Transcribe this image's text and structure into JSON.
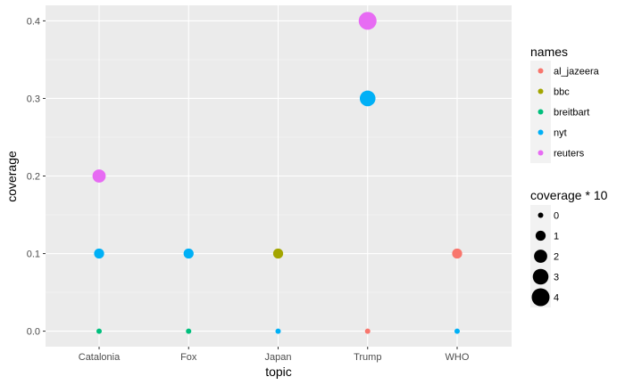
{
  "chart_data": {
    "type": "scatter",
    "xlabel": "topic",
    "ylabel": "coverage",
    "categories": [
      "Catalonia",
      "Fox",
      "Japan",
      "Trump",
      "WHO"
    ],
    "ylim": [
      -0.02,
      0.42
    ],
    "yticks": [
      0.0,
      0.1,
      0.2,
      0.3,
      0.4
    ],
    "ytick_labels": [
      "0.0",
      "0.1",
      "0.2",
      "0.3",
      "0.4"
    ],
    "grid": true,
    "legend_position": "right",
    "color_legend": {
      "title": "names",
      "entries": [
        {
          "label": "al_jazeera",
          "color": "#F8766D"
        },
        {
          "label": "bbc",
          "color": "#A3A500"
        },
        {
          "label": "breitbart",
          "color": "#00BF7D"
        },
        {
          "label": "nyt",
          "color": "#00B0F6"
        },
        {
          "label": "reuters",
          "color": "#E76BF3"
        }
      ]
    },
    "size_legend": {
      "title": "coverage * 10",
      "entries": [
        {
          "label": "0",
          "value": 0
        },
        {
          "label": "1",
          "value": 1
        },
        {
          "label": "2",
          "value": 2
        },
        {
          "label": "3",
          "value": 3
        },
        {
          "label": "4",
          "value": 4
        }
      ]
    },
    "points": [
      {
        "topic": "Catalonia",
        "name": "breitbart",
        "coverage": 0.0
      },
      {
        "topic": "Catalonia",
        "name": "nyt",
        "coverage": 0.1
      },
      {
        "topic": "Catalonia",
        "name": "reuters",
        "coverage": 0.2
      },
      {
        "topic": "Fox",
        "name": "breitbart",
        "coverage": 0.0
      },
      {
        "topic": "Fox",
        "name": "nyt",
        "coverage": 0.1
      },
      {
        "topic": "Japan",
        "name": "nyt",
        "coverage": 0.0
      },
      {
        "topic": "Japan",
        "name": "bbc",
        "coverage": 0.1
      },
      {
        "topic": "Trump",
        "name": "al_jazeera",
        "coverage": 0.0
      },
      {
        "topic": "Trump",
        "name": "nyt",
        "coverage": 0.3
      },
      {
        "topic": "Trump",
        "name": "reuters",
        "coverage": 0.4
      },
      {
        "topic": "WHO",
        "name": "nyt",
        "coverage": 0.0
      },
      {
        "topic": "WHO",
        "name": "al_jazeera",
        "coverage": 0.1
      }
    ]
  }
}
